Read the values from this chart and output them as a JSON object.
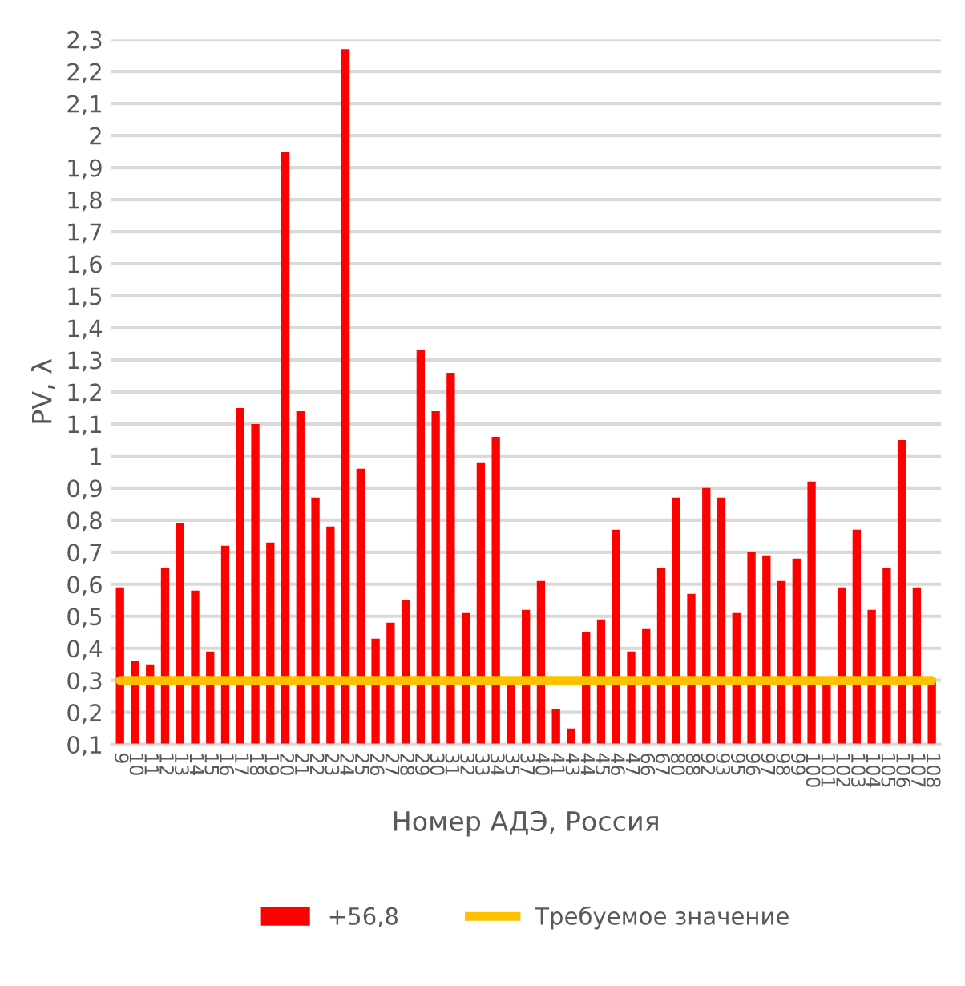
{
  "chart_data": {
    "type": "bar",
    "xlabel": "Номер АДЭ, Россия",
    "ylabel": "PV, λ",
    "categories": [
      "9",
      "10",
      "11",
      "12",
      "13",
      "14",
      "15",
      "16",
      "17",
      "18",
      "19",
      "20",
      "21",
      "22",
      "23",
      "24",
      "25",
      "26",
      "27",
      "28",
      "29",
      "30",
      "31",
      "32",
      "33",
      "34",
      "35",
      "37",
      "40",
      "41",
      "43",
      "44",
      "45",
      "46",
      "47",
      "66",
      "67",
      "80",
      "88",
      "92",
      "93",
      "95",
      "96",
      "97",
      "98",
      "99",
      "100",
      "101",
      "102",
      "103",
      "104",
      "105",
      "106",
      "107",
      "108"
    ],
    "series": [
      {
        "name": "+56,8",
        "color": "#ff0000",
        "values": [
          0.59,
          0.36,
          0.35,
          0.65,
          0.79,
          0.58,
          0.39,
          0.72,
          1.15,
          1.1,
          0.73,
          1.95,
          1.14,
          0.87,
          0.78,
          2.27,
          0.96,
          0.43,
          0.48,
          0.55,
          1.33,
          1.14,
          1.26,
          0.51,
          0.98,
          1.06,
          0.3,
          0.52,
          0.61,
          0.21,
          0.15,
          0.45,
          0.49,
          0.77,
          0.39,
          0.46,
          0.65,
          0.87,
          0.57,
          0.9,
          0.87,
          0.51,
          0.7,
          0.69,
          0.61,
          0.68,
          0.92,
          0.3,
          0.59,
          0.77,
          0.52,
          0.65,
          1.05,
          0.59,
          0.3
        ]
      },
      {
        "name": "Требуемое значение",
        "type": "line",
        "color": "#ffc000",
        "values": [
          0.3,
          0.3,
          0.3,
          0.3,
          0.3,
          0.3,
          0.3,
          0.3,
          0.3,
          0.3,
          0.3,
          0.3,
          0.3,
          0.3,
          0.3,
          0.3,
          0.3,
          0.3,
          0.3,
          0.3,
          0.3,
          0.3,
          0.3,
          0.3,
          0.3,
          0.3,
          0.3,
          0.3,
          0.3,
          0.3,
          0.3,
          0.3,
          0.3,
          0.3,
          0.3,
          0.3,
          0.3,
          0.3,
          0.3,
          0.3,
          0.3,
          0.3,
          0.3,
          0.3,
          0.3,
          0.3,
          0.3,
          0.3,
          0.3,
          0.3,
          0.3,
          0.3,
          0.3,
          0.3,
          0.3
        ]
      }
    ],
    "ylim": [
      0.1,
      2.3
    ],
    "yticks": [
      {
        "value": 0.1,
        "label": "0,1"
      },
      {
        "value": 0.2,
        "label": "0,2"
      },
      {
        "value": 0.3,
        "label": "0,3"
      },
      {
        "value": 0.4,
        "label": "0,4"
      },
      {
        "value": 0.5,
        "label": "0,5"
      },
      {
        "value": 0.6,
        "label": "0,6"
      },
      {
        "value": 0.7,
        "label": "0,7"
      },
      {
        "value": 0.8,
        "label": "0,8"
      },
      {
        "value": 0.9,
        "label": "0,9"
      },
      {
        "value": 1,
        "label": "1"
      },
      {
        "value": 1.1,
        "label": "1,1"
      },
      {
        "value": 1.2,
        "label": "1,2"
      },
      {
        "value": 1.3,
        "label": "1,3"
      },
      {
        "value": 1.4,
        "label": "1,4"
      },
      {
        "value": 1.5,
        "label": "1,5"
      },
      {
        "value": 1.6,
        "label": "1,6"
      },
      {
        "value": 1.7,
        "label": "1,7"
      },
      {
        "value": 1.8,
        "label": "1,8"
      },
      {
        "value": 1.9,
        "label": "1,9"
      },
      {
        "value": 2,
        "label": "2"
      },
      {
        "value": 2.1,
        "label": "2,1"
      },
      {
        "value": 2.2,
        "label": "2,2"
      },
      {
        "value": 2.3,
        "label": "2,3"
      }
    ],
    "grid": "y",
    "legend": "bottom",
    "marker": "none",
    "line_style": "solid"
  }
}
